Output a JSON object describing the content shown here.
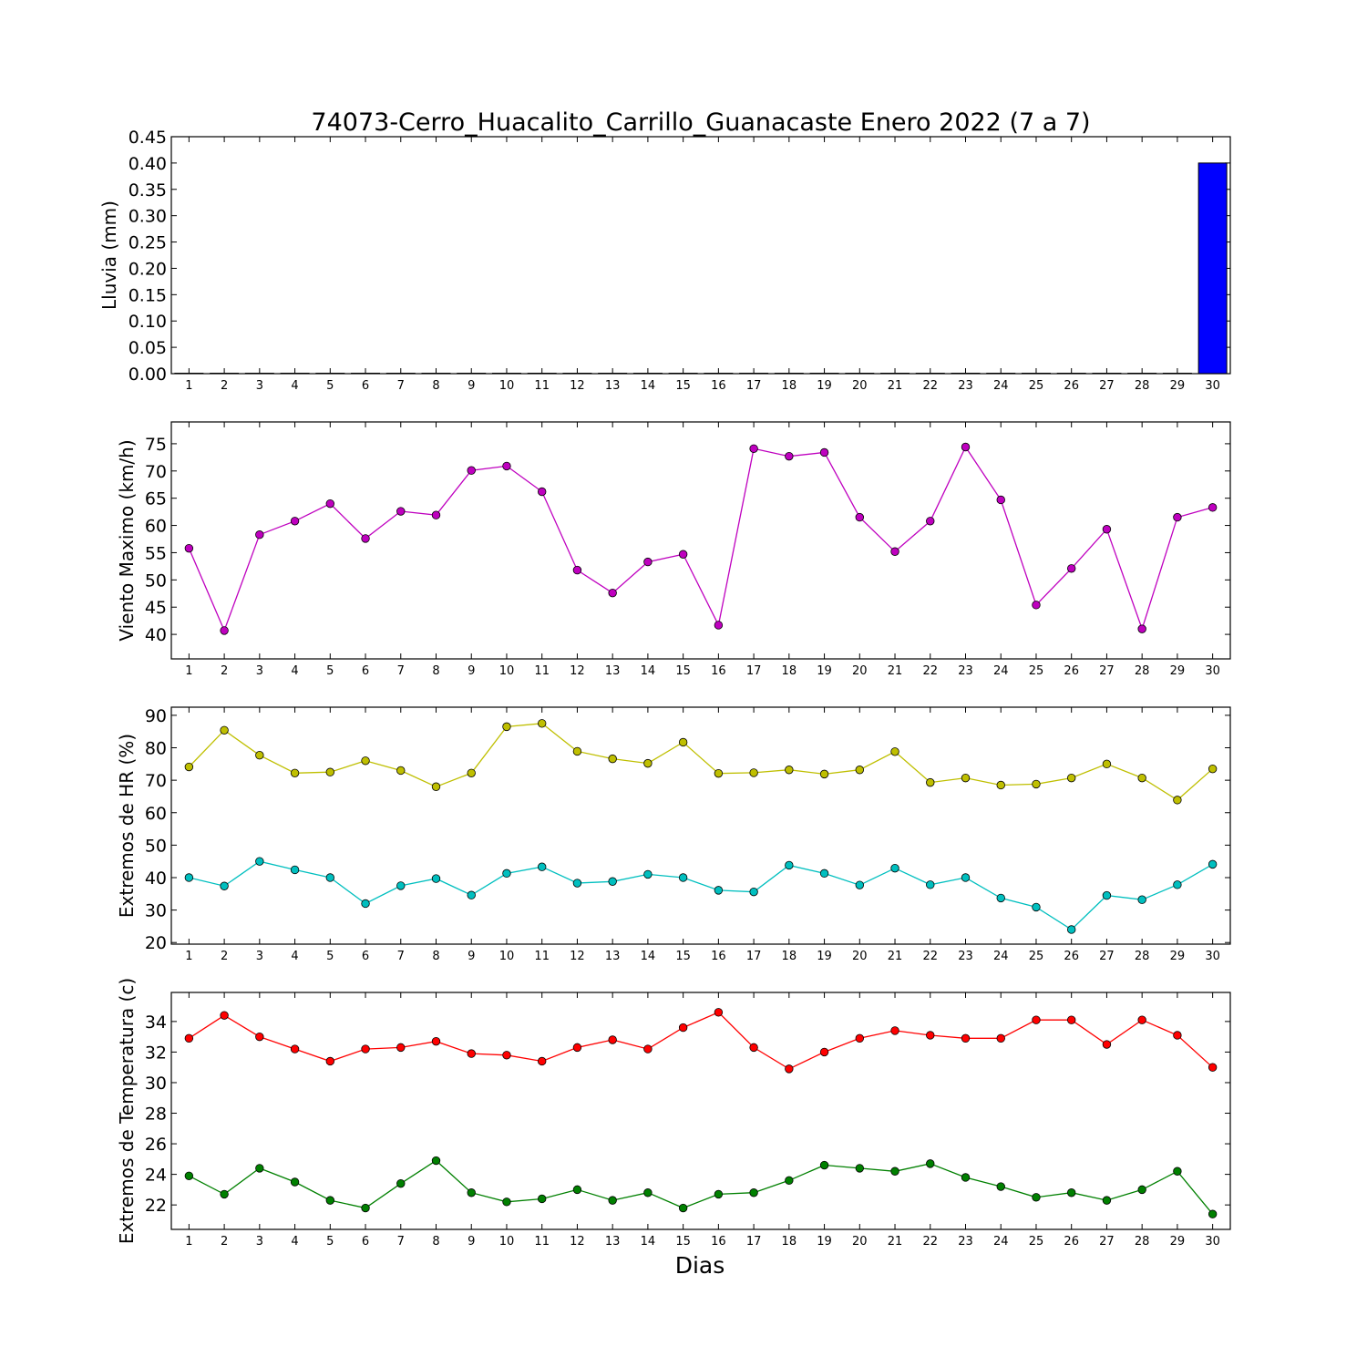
{
  "title": "74073-Cerro_Huacalito_Carrillo_Guanacaste Enero 2022  (7 a 7)",
  "xlabel": "Dias",
  "chart_data": [
    {
      "type": "bar",
      "ylabel": "Lluvia (mm)",
      "ylim": [
        0,
        0.45
      ],
      "yticks": [
        "0.00",
        "0.05",
        "0.10",
        "0.15",
        "0.20",
        "0.25",
        "0.30",
        "0.35",
        "0.40",
        "0.45"
      ],
      "categories": [
        1,
        2,
        3,
        4,
        5,
        6,
        7,
        8,
        9,
        10,
        11,
        12,
        13,
        14,
        15,
        16,
        17,
        18,
        19,
        20,
        21,
        22,
        23,
        24,
        25,
        26,
        27,
        28,
        29,
        30
      ],
      "series": [
        {
          "color": "#0000ff",
          "values": [
            0,
            0,
            0,
            0,
            0,
            0,
            0,
            0,
            0,
            0,
            0,
            0,
            0,
            0,
            0,
            0,
            0,
            0,
            0,
            0,
            0,
            0,
            0,
            0,
            0,
            0,
            0,
            0,
            0,
            0.4
          ]
        }
      ]
    },
    {
      "type": "line",
      "ylabel": "Viento Maximo (km/h)",
      "ylim": [
        35.5,
        79
      ],
      "yticks": [
        "40",
        "45",
        "50",
        "55",
        "60",
        "65",
        "70",
        "75"
      ],
      "categories": [
        1,
        2,
        3,
        4,
        5,
        6,
        7,
        8,
        9,
        10,
        11,
        12,
        13,
        14,
        15,
        16,
        17,
        18,
        19,
        20,
        21,
        22,
        23,
        24,
        25,
        26,
        27,
        28,
        29,
        30
      ],
      "series": [
        {
          "color": "#bf00bf",
          "values": [
            55.8,
            40.7,
            58.3,
            60.8,
            64.0,
            57.6,
            62.6,
            61.9,
            70.1,
            70.9,
            66.2,
            51.8,
            47.6,
            53.3,
            54.7,
            41.7,
            74.1,
            72.7,
            73.4,
            61.5,
            55.2,
            60.8,
            74.4,
            64.7,
            45.4,
            52.1,
            59.3,
            41.0,
            61.5,
            63.3
          ]
        }
      ]
    },
    {
      "type": "line",
      "ylabel": "Extremos de HR (%)",
      "ylim": [
        19.5,
        92.5
      ],
      "yticks": [
        "20",
        "30",
        "40",
        "50",
        "60",
        "70",
        "80",
        "90"
      ],
      "categories": [
        1,
        2,
        3,
        4,
        5,
        6,
        7,
        8,
        9,
        10,
        11,
        12,
        13,
        14,
        15,
        16,
        17,
        18,
        19,
        20,
        21,
        22,
        23,
        24,
        25,
        26,
        27,
        28,
        29,
        30
      ],
      "series": [
        {
          "color": "#bfbf00",
          "values": [
            74.1,
            85.4,
            77.7,
            72.2,
            72.5,
            76.0,
            73.0,
            68.0,
            72.2,
            86.5,
            87.5,
            78.9,
            76.6,
            75.2,
            81.7,
            72.1,
            72.3,
            73.2,
            71.9,
            73.2,
            78.8,
            69.3,
            70.7,
            68.5,
            68.8,
            70.7,
            75.0,
            70.7,
            63.9,
            73.5
          ]
        },
        {
          "color": "#00bfbf",
          "values": [
            40.0,
            37.4,
            45.0,
            42.4,
            40.0,
            32.0,
            37.5,
            39.7,
            34.6,
            41.3,
            43.3,
            38.3,
            38.8,
            41.0,
            40.0,
            36.1,
            35.6,
            43.8,
            41.3,
            37.7,
            42.9,
            37.8,
            40.0,
            33.7,
            30.9,
            24.0,
            34.5,
            33.2,
            37.8,
            44.1
          ]
        }
      ]
    },
    {
      "type": "line",
      "ylabel": "Extremos de Temperatura (c)",
      "ylim": [
        20.4,
        35.9
      ],
      "yticks": [
        "22",
        "24",
        "26",
        "28",
        "30",
        "32",
        "34"
      ],
      "categories": [
        1,
        2,
        3,
        4,
        5,
        6,
        7,
        8,
        9,
        10,
        11,
        12,
        13,
        14,
        15,
        16,
        17,
        18,
        19,
        20,
        21,
        22,
        23,
        24,
        25,
        26,
        27,
        28,
        29,
        30
      ],
      "series": [
        {
          "color": "#ff0000",
          "values": [
            32.9,
            34.4,
            33.0,
            32.2,
            31.4,
            32.2,
            32.3,
            32.7,
            31.9,
            31.8,
            31.4,
            32.3,
            32.8,
            32.2,
            33.6,
            34.6,
            32.3,
            30.9,
            32.0,
            32.9,
            33.4,
            33.1,
            32.9,
            32.9,
            34.1,
            34.1,
            32.5,
            34.1,
            33.1,
            31.0
          ]
        },
        {
          "color": "#008000",
          "values": [
            23.9,
            22.7,
            24.4,
            23.5,
            22.3,
            21.8,
            23.4,
            24.9,
            22.8,
            22.2,
            22.4,
            23.0,
            22.3,
            22.8,
            21.8,
            22.7,
            22.8,
            23.6,
            24.6,
            24.4,
            24.2,
            24.7,
            23.8,
            23.2,
            22.5,
            22.8,
            22.3,
            23.0,
            24.2,
            21.4
          ]
        }
      ]
    }
  ]
}
